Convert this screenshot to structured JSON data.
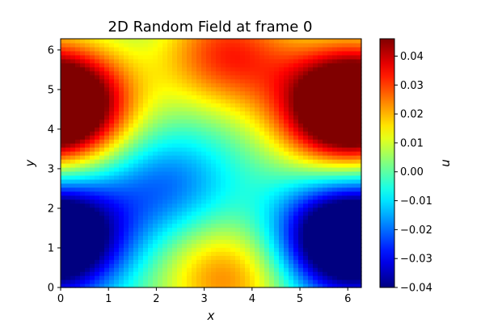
{
  "chart_data": {
    "type": "heatmap",
    "title": "2D Random Field at frame 0",
    "xlabel": "x",
    "ylabel": "y",
    "colorbar_label": "u",
    "xlim": [
      0,
      6.283
    ],
    "ylim": [
      0,
      6.283
    ],
    "vlim": [
      -0.04,
      0.046
    ],
    "colormap": "jet",
    "grid": false,
    "x_ticks": [
      {
        "value": 0,
        "label": "0"
      },
      {
        "value": 1,
        "label": "1"
      },
      {
        "value": 2,
        "label": "2"
      },
      {
        "value": 3,
        "label": "3"
      },
      {
        "value": 4,
        "label": "4"
      },
      {
        "value": 5,
        "label": "5"
      },
      {
        "value": 6,
        "label": "6"
      }
    ],
    "y_ticks": [
      {
        "value": 0,
        "label": "0"
      },
      {
        "value": 1,
        "label": "1"
      },
      {
        "value": 2,
        "label": "2"
      },
      {
        "value": 3,
        "label": "3"
      },
      {
        "value": 4,
        "label": "4"
      },
      {
        "value": 5,
        "label": "5"
      },
      {
        "value": 6,
        "label": "6"
      }
    ],
    "colorbar_ticks": [
      {
        "value": -0.04,
        "label": "−0.04"
      },
      {
        "value": -0.03,
        "label": "−0.03"
      },
      {
        "value": -0.02,
        "label": "−0.02"
      },
      {
        "value": -0.01,
        "label": "−0.01"
      },
      {
        "value": 0.0,
        "label": "0.00"
      },
      {
        "value": 0.01,
        "label": "0.01"
      },
      {
        "value": 0.02,
        "label": "0.02"
      },
      {
        "value": 0.03,
        "label": "0.03"
      },
      {
        "value": 0.04,
        "label": "0.04"
      }
    ],
    "features": [
      {
        "x": 5.9,
        "y": 4.5,
        "value": 0.046
      },
      {
        "x": 0.1,
        "y": 4.7,
        "value": 0.04
      },
      {
        "x": 3.5,
        "y": 5.9,
        "value": 0.032
      },
      {
        "x": 5.8,
        "y": 1.2,
        "value": -0.04
      },
      {
        "x": 0.1,
        "y": 1.3,
        "value": -0.032
      },
      {
        "x": 2.2,
        "y": 2.6,
        "value": -0.02
      },
      {
        "x": 3.5,
        "y": 0.3,
        "value": 0.025
      }
    ]
  }
}
